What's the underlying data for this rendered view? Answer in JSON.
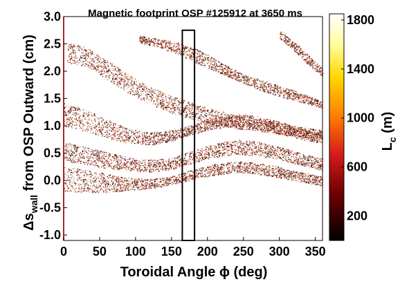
{
  "chart_data": {
    "type": "scatter",
    "title": "Magnetic footprint OSP #125912 at 3650 ms",
    "xlabel": "Toroidal Angle ϕ (deg)",
    "ylabel": {
      "prefix": "Δs",
      "sub": "wall",
      "rest": " from OSP Outward (cm)"
    },
    "xlim": [
      0,
      360
    ],
    "ylim": [
      -1.1,
      3.0
    ],
    "xticks": [
      0,
      50,
      100,
      150,
      200,
      250,
      300,
      350
    ],
    "yticks": [
      -1.0,
      -0.5,
      0.0,
      0.5,
      1.0,
      1.5,
      2.0,
      2.5,
      3.0
    ],
    "ytick_labels": [
      "-1.0",
      "-0.5",
      "0.0",
      "0.5",
      "1.0",
      "1.5",
      "2.0",
      "2.5",
      "3.0"
    ],
    "grid": false,
    "colorbar": {
      "label_main": "L",
      "label_sub": "c",
      "label_unit": " (m)",
      "range": [
        0,
        1850
      ],
      "ticks": [
        200,
        600,
        1000,
        1400,
        1800
      ],
      "colormap": "hot",
      "colors": [
        "#000000",
        "#8b0000",
        "#e41a1c",
        "#ff7f00",
        "#ffd700",
        "#ffff99",
        "#ffffff"
      ]
    },
    "highlight_box": {
      "x": [
        165,
        182
      ],
      "y": [
        -1.1,
        2.75
      ]
    },
    "bands": [
      {
        "xrange": [
          5,
          360
        ],
        "top": [
          [
            5,
            2.52
          ],
          [
            30,
            2.45
          ],
          [
            60,
            2.2
          ],
          [
            90,
            1.95
          ],
          [
            120,
            1.72
          ],
          [
            150,
            1.55
          ],
          [
            180,
            1.42
          ],
          [
            210,
            1.3
          ],
          [
            240,
            1.2
          ],
          [
            270,
            1.12
          ],
          [
            300,
            1.05
          ],
          [
            330,
            0.98
          ],
          [
            360,
            0.92
          ]
        ],
        "bottom": [
          [
            5,
            2.15
          ],
          [
            30,
            2.1
          ],
          [
            60,
            1.85
          ],
          [
            90,
            1.6
          ],
          [
            120,
            1.4
          ],
          [
            150,
            1.23
          ],
          [
            180,
            1.12
          ],
          [
            210,
            1.02
          ],
          [
            240,
            0.95
          ],
          [
            270,
            0.9
          ],
          [
            300,
            0.85
          ],
          [
            330,
            0.8
          ],
          [
            360,
            0.75
          ]
        ]
      },
      {
        "xrange": [
          105,
          360
        ],
        "top": [
          [
            105,
            2.65
          ],
          [
            130,
            2.6
          ],
          [
            160,
            2.52
          ],
          [
            190,
            2.38
          ],
          [
            220,
            2.15
          ],
          [
            250,
            1.95
          ],
          [
            280,
            1.82
          ],
          [
            310,
            1.7
          ],
          [
            340,
            1.55
          ],
          [
            360,
            1.45
          ]
        ],
        "bottom": [
          [
            105,
            2.52
          ],
          [
            130,
            2.45
          ],
          [
            160,
            2.3
          ],
          [
            190,
            2.12
          ],
          [
            220,
            1.95
          ],
          [
            250,
            1.78
          ],
          [
            280,
            1.62
          ],
          [
            310,
            1.5
          ],
          [
            340,
            1.4
          ],
          [
            360,
            1.32
          ]
        ]
      },
      {
        "xrange": [
          300,
          360
        ],
        "top": [
          [
            300,
            2.75
          ],
          [
            320,
            2.55
          ],
          [
            340,
            2.3
          ],
          [
            360,
            2.05
          ]
        ],
        "bottom": [
          [
            300,
            2.6
          ],
          [
            320,
            2.38
          ],
          [
            340,
            2.12
          ],
          [
            360,
            1.9
          ]
        ]
      },
      {
        "xrange": [
          0,
          360
        ],
        "top": [
          [
            0,
            1.42
          ],
          [
            30,
            1.3
          ],
          [
            60,
            1.12
          ],
          [
            90,
            0.95
          ],
          [
            120,
            0.88
          ],
          [
            150,
            0.92
          ],
          [
            180,
            1.02
          ],
          [
            210,
            1.15
          ],
          [
            240,
            1.22
          ],
          [
            270,
            1.18
          ],
          [
            300,
            1.08
          ],
          [
            330,
            0.95
          ],
          [
            360,
            0.85
          ]
        ],
        "bottom": [
          [
            0,
            1.0
          ],
          [
            30,
            0.9
          ],
          [
            60,
            0.78
          ],
          [
            90,
            0.68
          ],
          [
            120,
            0.65
          ],
          [
            150,
            0.72
          ],
          [
            180,
            0.85
          ],
          [
            210,
            0.95
          ],
          [
            240,
            1.0
          ],
          [
            270,
            0.95
          ],
          [
            300,
            0.85
          ],
          [
            330,
            0.75
          ],
          [
            360,
            0.68
          ]
        ]
      },
      {
        "xrange": [
          0,
          360
        ],
        "top": [
          [
            0,
            0.7
          ],
          [
            30,
            0.62
          ],
          [
            60,
            0.52
          ],
          [
            90,
            0.42
          ],
          [
            120,
            0.38
          ],
          [
            150,
            0.42
          ],
          [
            180,
            0.55
          ],
          [
            210,
            0.68
          ],
          [
            240,
            0.75
          ],
          [
            270,
            0.72
          ],
          [
            300,
            0.62
          ],
          [
            330,
            0.5
          ],
          [
            360,
            0.4
          ]
        ],
        "bottom": [
          [
            0,
            0.35
          ],
          [
            30,
            0.3
          ],
          [
            60,
            0.22
          ],
          [
            90,
            0.18
          ],
          [
            120,
            0.15
          ],
          [
            150,
            0.2
          ],
          [
            180,
            0.32
          ],
          [
            210,
            0.42
          ],
          [
            240,
            0.48
          ],
          [
            270,
            0.45
          ],
          [
            300,
            0.38
          ],
          [
            330,
            0.28
          ],
          [
            360,
            0.18
          ]
        ]
      },
      {
        "xrange": [
          0,
          360
        ],
        "top": [
          [
            0,
            0.25
          ],
          [
            30,
            0.2
          ],
          [
            60,
            0.12
          ],
          [
            90,
            0.05
          ],
          [
            120,
            0.03
          ],
          [
            150,
            0.08
          ],
          [
            180,
            0.2
          ],
          [
            210,
            0.3
          ],
          [
            240,
            0.35
          ],
          [
            270,
            0.32
          ],
          [
            300,
            0.25
          ],
          [
            330,
            0.15
          ],
          [
            360,
            0.08
          ]
        ],
        "bottom": [
          [
            0,
            -0.2
          ],
          [
            30,
            -0.22
          ],
          [
            60,
            -0.22
          ],
          [
            90,
            -0.18
          ],
          [
            120,
            -0.15
          ],
          [
            150,
            -0.08
          ],
          [
            180,
            0.02
          ],
          [
            210,
            0.1
          ],
          [
            240,
            0.15
          ],
          [
            270,
            0.12
          ],
          [
            300,
            0.05
          ],
          [
            330,
            -0.02
          ],
          [
            360,
            -0.1
          ]
        ]
      }
    ]
  }
}
